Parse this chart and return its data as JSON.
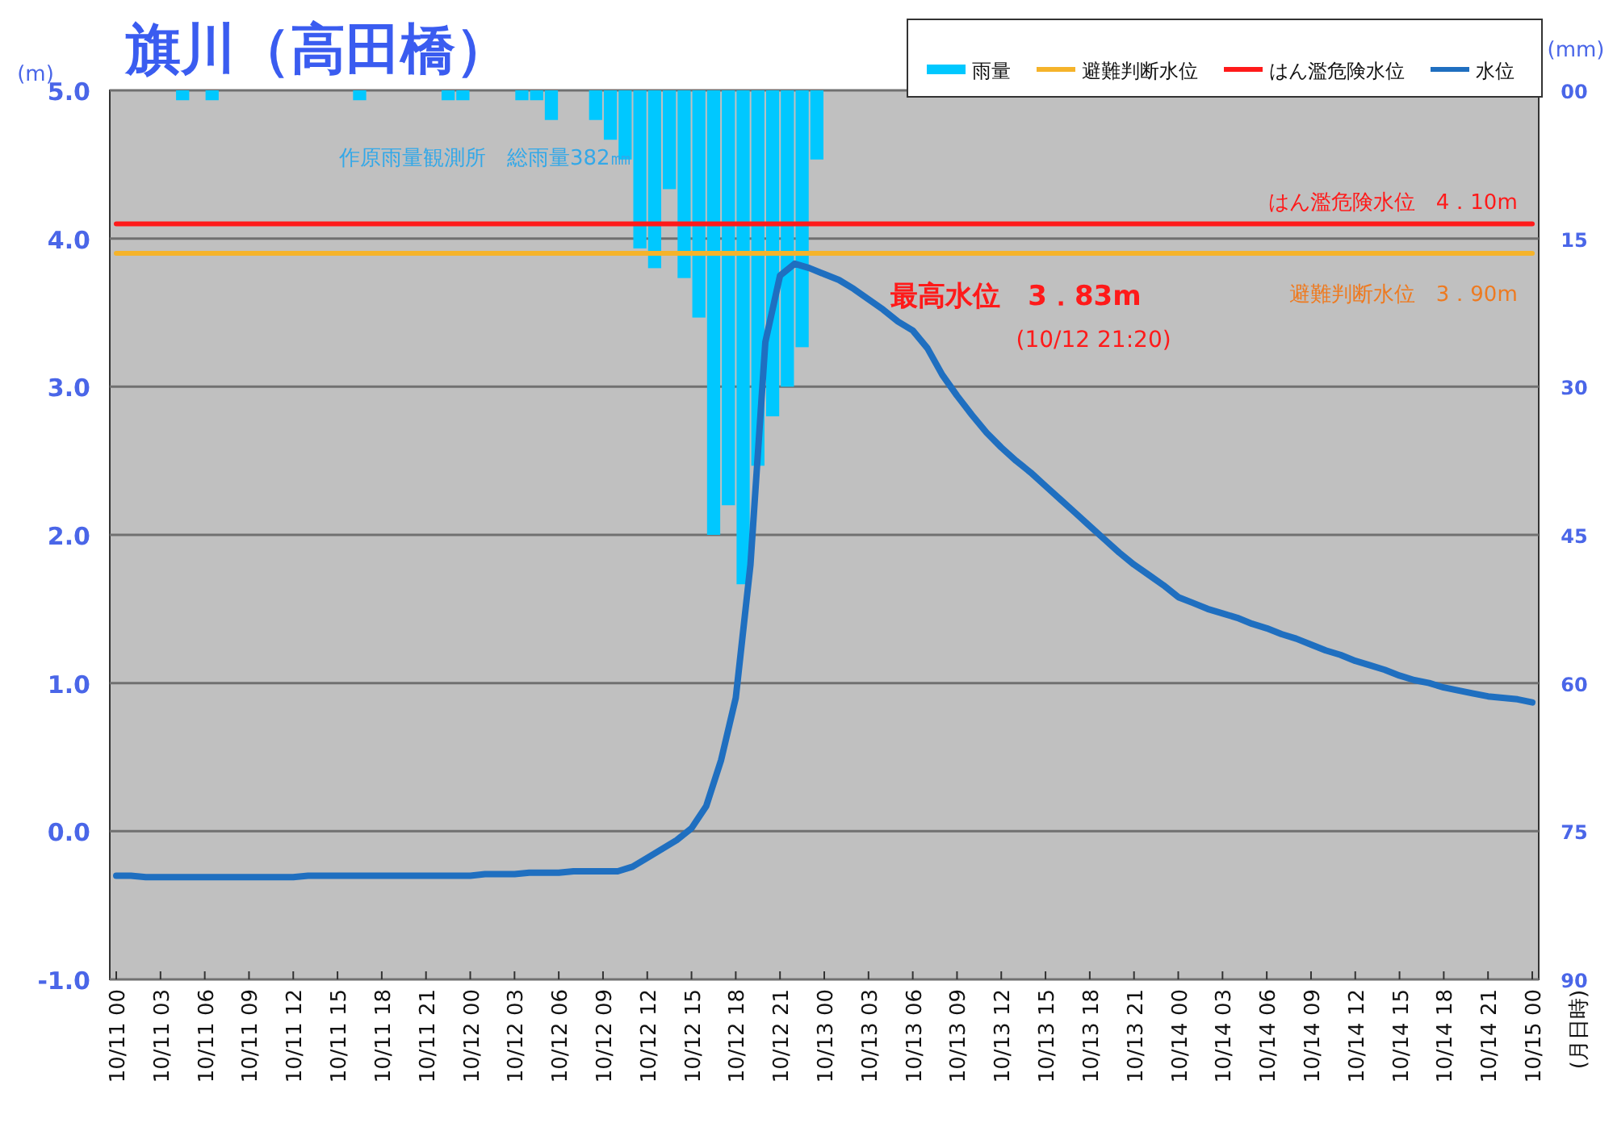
{
  "chart_data": {
    "type": "line",
    "title": "旗川（高田橋）",
    "ylabel": "(m)",
    "y2label": "(mm)",
    "categories": [
      "10/11 00",
      null,
      null,
      "10/11 03",
      null,
      null,
      "10/11 06",
      null,
      null,
      "10/11 09",
      null,
      null,
      "10/11 12",
      null,
      null,
      "10/11 15",
      null,
      null,
      "10/11 18",
      null,
      null,
      "10/11 21",
      null,
      null,
      "10/12 00",
      null,
      null,
      "10/12 03",
      null,
      null,
      "10/12 06",
      null,
      null,
      "10/12 09",
      null,
      null,
      "10/12 12",
      null,
      null,
      "10/12 15",
      null,
      null,
      "10/12 18",
      null,
      null,
      "10/12 21",
      null,
      null,
      "10/13 00",
      null,
      null,
      "10/13 03",
      null,
      null,
      "10/13 06",
      null,
      null,
      "10/13 09",
      null,
      null,
      "10/13 12",
      null,
      null,
      "10/13 15",
      null,
      null,
      "10/13 18",
      null,
      null,
      "10/13 21",
      null,
      null,
      "10/14 00",
      null,
      null,
      "10/14 03",
      null,
      null,
      "10/14 06",
      null,
      null,
      "10/14 09",
      null,
      null,
      "10/14 12",
      null,
      null,
      "10/14 15",
      null,
      null,
      "10/14 18",
      null,
      null,
      "10/14 21",
      null,
      null,
      "10/15 00"
    ],
    "ylim": [
      -1,
      5
    ],
    "yticks": [
      {
        "value": -1,
        "label": "-1.0"
      },
      {
        "value": 0,
        "label": "0.0"
      },
      {
        "value": 1,
        "label": "1.0"
      },
      {
        "value": 2,
        "label": "2.0"
      },
      {
        "value": 3,
        "label": "3.0"
      },
      {
        "value": 4,
        "label": "4.0"
      },
      {
        "value": 5,
        "label": "5.0"
      }
    ],
    "y2lim": [
      90,
      0
    ],
    "y2ticks": [
      {
        "value": 0,
        "label": "00"
      },
      15,
      30,
      45,
      60,
      75,
      90
    ],
    "grid": "y",
    "legend": "top right",
    "series": [
      {
        "name": "雨量",
        "type": "bar",
        "axis": "y2",
        "color": "#00c8ff",
        "values": [
          null,
          null,
          null,
          null,
          null,
          1,
          null,
          1,
          null,
          null,
          null,
          null,
          null,
          null,
          null,
          null,
          null,
          1,
          null,
          null,
          null,
          null,
          null,
          1,
          1,
          null,
          null,
          null,
          1,
          1,
          3,
          null,
          null,
          3,
          5,
          7,
          16,
          18,
          10,
          19,
          23,
          45,
          42,
          50,
          38,
          33,
          30,
          26,
          7,
          null,
          null,
          null,
          null,
          null,
          null,
          null,
          null,
          null,
          null,
          null,
          null,
          null,
          null,
          null,
          null,
          null,
          null,
          null,
          null,
          null,
          null,
          null,
          null,
          null,
          null,
          null,
          null,
          null,
          null,
          null,
          null,
          null,
          null,
          null,
          null,
          null,
          null,
          null,
          null,
          null,
          null,
          null,
          null,
          null,
          null,
          null,
          null
        ]
      },
      {
        "name": "避難判断水位",
        "color": "#f5b32a",
        "values": [
          3.9,
          3.9,
          3.9,
          3.9,
          3.9,
          3.9,
          3.9,
          3.9,
          3.9,
          3.9,
          3.9,
          3.9,
          3.9,
          3.9,
          3.9,
          3.9,
          3.9,
          3.9,
          3.9,
          3.9,
          3.9,
          3.9,
          3.9,
          3.9,
          3.9,
          3.9,
          3.9,
          3.9,
          3.9,
          3.9,
          3.9,
          3.9,
          3.9,
          3.9,
          3.9,
          3.9,
          3.9,
          3.9,
          3.9,
          3.9,
          3.9,
          3.9,
          3.9,
          3.9,
          3.9,
          3.9,
          3.9,
          3.9,
          3.9,
          3.9,
          3.9,
          3.9,
          3.9,
          3.9,
          3.9,
          3.9,
          3.9,
          3.9,
          3.9,
          3.9,
          3.9,
          3.9,
          3.9,
          3.9,
          3.9,
          3.9,
          3.9,
          3.9,
          3.9,
          3.9,
          3.9,
          3.9,
          3.9,
          3.9,
          3.9,
          3.9,
          3.9,
          3.9,
          3.9,
          3.9,
          3.9,
          3.9,
          3.9,
          3.9,
          3.9,
          3.9,
          3.9,
          3.9,
          3.9,
          3.9,
          3.9,
          3.9,
          3.9,
          3.9,
          3.9,
          3.9,
          3.9
        ]
      },
      {
        "name": "はん濫危険水位",
        "color": "#ff1a1a",
        "values": [
          4.1,
          4.1,
          4.1,
          4.1,
          4.1,
          4.1,
          4.1,
          4.1,
          4.1,
          4.1,
          4.1,
          4.1,
          4.1,
          4.1,
          4.1,
          4.1,
          4.1,
          4.1,
          4.1,
          4.1,
          4.1,
          4.1,
          4.1,
          4.1,
          4.1,
          4.1,
          4.1,
          4.1,
          4.1,
          4.1,
          4.1,
          4.1,
          4.1,
          4.1,
          4.1,
          4.1,
          4.1,
          4.1,
          4.1,
          4.1,
          4.1,
          4.1,
          4.1,
          4.1,
          4.1,
          4.1,
          4.1,
          4.1,
          4.1,
          4.1,
          4.1,
          4.1,
          4.1,
          4.1,
          4.1,
          4.1,
          4.1,
          4.1,
          4.1,
          4.1,
          4.1,
          4.1,
          4.1,
          4.1,
          4.1,
          4.1,
          4.1,
          4.1,
          4.1,
          4.1,
          4.1,
          4.1,
          4.1,
          4.1,
          4.1,
          4.1,
          4.1,
          4.1,
          4.1,
          4.1,
          4.1,
          4.1,
          4.1,
          4.1,
          4.1,
          4.1,
          4.1,
          4.1,
          4.1,
          4.1,
          4.1,
          4.1,
          4.1,
          4.1,
          4.1,
          4.1,
          4.1
        ]
      },
      {
        "name": "水位",
        "color": "#1f6fc0",
        "values": [
          -0.3,
          -0.3,
          -0.31,
          -0.31,
          -0.31,
          -0.31,
          -0.31,
          -0.31,
          -0.31,
          -0.31,
          -0.31,
          -0.31,
          -0.31,
          -0.3,
          -0.3,
          -0.3,
          -0.3,
          -0.3,
          -0.3,
          -0.3,
          -0.3,
          -0.3,
          -0.3,
          -0.3,
          -0.3,
          -0.29,
          -0.29,
          -0.29,
          -0.28,
          -0.28,
          -0.28,
          -0.27,
          -0.27,
          -0.27,
          -0.27,
          -0.24,
          -0.18,
          -0.12,
          -0.06,
          0.02,
          0.17,
          0.48,
          0.9,
          1.8,
          3.3,
          3.75,
          3.83,
          3.8,
          3.76,
          3.72,
          3.66,
          3.59,
          3.52,
          3.44,
          3.38,
          3.26,
          3.08,
          2.94,
          2.81,
          2.69,
          2.59,
          2.5,
          2.42,
          2.33,
          2.24,
          2.15,
          2.06,
          1.97,
          1.88,
          1.8,
          1.73,
          1.66,
          1.58,
          1.54,
          1.5,
          1.47,
          1.44,
          1.4,
          1.37,
          1.33,
          1.3,
          1.26,
          1.22,
          1.19,
          1.15,
          1.12,
          1.09,
          1.05,
          1.02,
          1,
          0.97,
          0.95,
          0.93,
          0.91,
          0.9,
          0.89,
          0.87
        ]
      }
    ],
    "annotations": [
      "作原雨量観測所　総雨量382㎜",
      "はん濫危険水位　4．10m",
      "避難判断水位　3．90m",
      "最高水位　3．83m",
      "(10/12 21:20)",
      "(月日時)"
    ]
  }
}
